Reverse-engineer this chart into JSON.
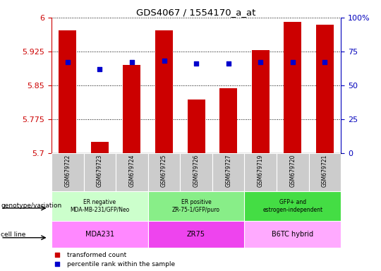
{
  "title": "GDS4067 / 1554170_a_at",
  "samples": [
    "GSM679722",
    "GSM679723",
    "GSM679724",
    "GSM679725",
    "GSM679726",
    "GSM679727",
    "GSM679719",
    "GSM679720",
    "GSM679721"
  ],
  "bar_values": [
    5.972,
    5.725,
    5.895,
    5.972,
    5.818,
    5.843,
    5.928,
    5.99,
    5.985
  ],
  "percentile_values": [
    67,
    62,
    67,
    68,
    66,
    66,
    67,
    67,
    67
  ],
  "ymin": 5.7,
  "ymax": 6.0,
  "yticks": [
    5.7,
    5.775,
    5.85,
    5.925,
    6.0
  ],
  "ytick_labels": [
    "5.7",
    "5.775",
    "5.85",
    "5.925",
    "6"
  ],
  "y2min": 0,
  "y2max": 100,
  "y2ticks": [
    0,
    25,
    50,
    75,
    100
  ],
  "y2tick_labels": [
    "0",
    "25",
    "50",
    "75",
    "100%"
  ],
  "bar_color": "#cc0000",
  "dot_color": "#0000cc",
  "genotype_groups": [
    {
      "label": "ER negative\nMDA-MB-231/GFP/Neo",
      "start": 0,
      "end": 3,
      "color": "#ccffcc"
    },
    {
      "label": "ER positive\nZR-75-1/GFP/puro",
      "start": 3,
      "end": 6,
      "color": "#88ee88"
    },
    {
      "label": "GFP+ and\nestrogen-independent",
      "start": 6,
      "end": 9,
      "color": "#44dd44"
    }
  ],
  "cell_line_groups": [
    {
      "label": "MDA231",
      "start": 0,
      "end": 3,
      "color": "#ff88ff"
    },
    {
      "label": "ZR75",
      "start": 3,
      "end": 6,
      "color": "#ee44ee"
    },
    {
      "label": "B6TC hybrid",
      "start": 6,
      "end": 9,
      "color": "#ffaaff"
    }
  ],
  "legend_items": [
    {
      "label": "transformed count",
      "color": "#cc0000"
    },
    {
      "label": "percentile rank within the sample",
      "color": "#0000cc"
    }
  ],
  "left_label_geno": "genotype/variation",
  "left_label_cell": "cell line",
  "bar_width": 0.55,
  "grid_color": "#000000",
  "tick_color_left": "#cc0000",
  "tick_color_right": "#0000bb",
  "sample_bg_color": "#cccccc"
}
